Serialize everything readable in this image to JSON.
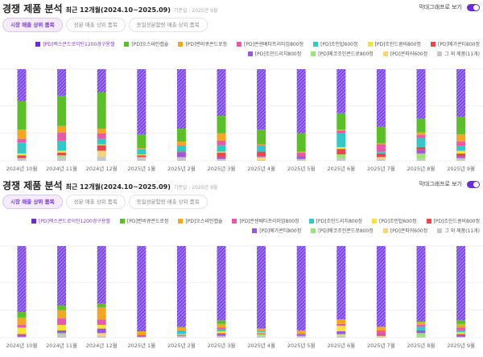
{
  "series_colors": [
    "#6c2bd9",
    "#5cbf2a",
    "#f2a623",
    "#e85aa8",
    "#33c8c8",
    "#f5e23a",
    "#e5484d",
    "#9b59d9",
    "#9ee07a",
    "#f9d27a",
    "#c8c8c8"
  ],
  "sections": [
    {
      "title": "경쟁 제품 분석",
      "period": "최근 12개월(2024.10~2025.09)",
      "basis": "기준일 : 2025년 9월",
      "toggle_label": "막대그래프로 보기",
      "tabs": [
        "시장 매출 상위 품목",
        "성분 매출 상위 품목",
        "동일성분함량 매출 상위 품목"
      ],
      "chart_data": {
        "type": "bar",
        "stacked": true,
        "normalized": true,
        "ylim": [
          0,
          100
        ],
        "categories": [
          "2024년 10월",
          "2024년 11월",
          "2024년 12월",
          "2025년 1월",
          "2025년 2월",
          "2025년 3월",
          "2025년 4월",
          "2025년 5월",
          "2025년 6월",
          "2025년 7월",
          "2025년 8월",
          "2025년 9월"
        ],
        "series": [
          {
            "name": "[PD]렉스콘드로이틴1200경구용젤",
            "values": [
              35,
              29,
              25,
              71,
              65,
              51,
              66,
              70,
              48,
              63,
              54,
              52
            ]
          },
          {
            "name": "[PD]오스테인캡슐",
            "values": [
              31,
              33,
              40,
              15,
              14,
              19,
              16,
              20,
              18,
              18,
              15,
              19
            ]
          },
          {
            "name": "[PD]변비큐콘드로정",
            "values": [
              10,
              7,
              5,
              1,
              4,
              8,
              1,
              1,
              1,
              1,
              3,
              8
            ]
          },
          {
            "name": "[PD]콘센베타프리미엄800정",
            "values": [
              4,
              9,
              6,
              0,
              1,
              5,
              1,
              3,
              3,
              8,
              3,
              5
            ]
          },
          {
            "name": "[PD]조인탑600정",
            "values": [
              12,
              11,
              6,
              6,
              6,
              7,
              6,
              0,
              15,
              2,
              10,
              5
            ]
          },
          {
            "name": "[PD]조인드콤비800정",
            "values": [
              2,
              2,
              1,
              1,
              0,
              1,
              0,
              0,
              2,
              0,
              0,
              3
            ]
          },
          {
            "name": "[PD]메가콘티800정",
            "values": [
              3,
              3,
              6,
              2,
              1,
              5,
              5,
              1,
              6,
              4,
              3,
              3
            ]
          },
          {
            "name": "[PD]조인드리치800정",
            "values": [
              0,
              0,
              0,
              0,
              5,
              2,
              1,
              3,
              0,
              0,
              4,
              2
            ]
          },
          {
            "name": "[PD]메코조인콘드로800정",
            "values": [
              0,
              2,
              0,
              0,
              0,
              0,
              0,
              0,
              4,
              0,
              6,
              0
            ]
          },
          {
            "name": "[PD]콘파워600정",
            "values": [
              0,
              0,
              6,
              0,
              0,
              0,
              3,
              0,
              0,
              2,
              0,
              0
            ]
          },
          {
            "name": "그 외 제품(11개)",
            "values": [
              3,
              4,
              5,
              4,
              4,
              2,
              1,
              2,
              3,
              2,
              2,
              3
            ]
          }
        ]
      }
    },
    {
      "title": "경쟁 제품 분석",
      "period": "최근 12개월(2024.10~2025.09)",
      "basis": "기준일 : 2025년 9월",
      "toggle_label": "막대그래프로 보기",
      "tabs": [
        "시장 매출 상위 품목",
        "성분 매출 상위 품목",
        "동일성분함량 매출 상위 품목"
      ],
      "chart_data": {
        "type": "bar",
        "stacked": true,
        "normalized": true,
        "ylim": [
          0,
          100
        ],
        "categories": [
          "2024년 10월",
          "2024년 11월",
          "2024년 12월",
          "2025년 1월",
          "2025년 2월",
          "2025년 3월",
          "2025년 4월",
          "2025년 5월",
          "2025년 6월",
          "2025년 7월",
          "2025년 8월",
          "2025년 9월"
        ],
        "series": [
          {
            "name": "[PD]렉스콘드로이틴1200경구용젤",
            "values": [
              72,
              65,
              63,
              93,
              88,
              81,
              90,
              92,
              80,
              88,
              82,
              81
            ]
          },
          {
            "name": "[PD]변비큐콘드로정",
            "values": [
              6,
              5,
              4,
              0,
              1,
              4,
              0,
              0,
              0,
              0,
              1,
              4
            ]
          },
          {
            "name": "[PD]오스테인캡슐",
            "values": [
              8,
              9,
              13,
              4,
              3,
              4,
              3,
              4,
              5,
              4,
              3,
              4
            ]
          },
          {
            "name": "[PD]콘센베타프리미엄800정",
            "values": [
              3,
              7,
              6,
              0,
              0,
              2,
              0,
              0,
              2,
              4,
              2,
              3
            ]
          },
          {
            "name": "[PD]조인드리치800정",
            "values": [
              0,
              0,
              0,
              0,
              4,
              2,
              1,
              0,
              0,
              0,
              4,
              2
            ]
          },
          {
            "name": "[PD]조인탑600정",
            "values": [
              7,
              6,
              4,
              0,
              1,
              2,
              1,
              0,
              6,
              0,
              0,
              2
            ]
          },
          {
            "name": "[PD]조인드콤비800정",
            "values": [
              1,
              1,
              0,
              1,
              0,
              1,
              1,
              0,
              0,
              1,
              1,
              1
            ]
          },
          {
            "name": "[PD]메가콘티800정",
            "values": [
              2,
              2,
              5,
              1,
              1,
              2,
              0,
              2,
              3,
              1,
              2,
              2
            ]
          },
          {
            "name": "[PD]메코조인콘드로800정",
            "values": [
              0,
              2,
              0,
              0,
              0,
              0,
              2,
              0,
              1,
              0,
              4,
              0
            ]
          },
          {
            "name": "[PD]콘파워600정",
            "values": [
              0,
              0,
              3,
              0,
              0,
              0,
              0,
              0,
              1,
              1,
              0,
              0
            ]
          },
          {
            "name": "그 외 제품(11개)",
            "values": [
              1,
              3,
              2,
              1,
              2,
              2,
              2,
              2,
              2,
              1,
              1,
              1
            ]
          }
        ]
      }
    }
  ]
}
